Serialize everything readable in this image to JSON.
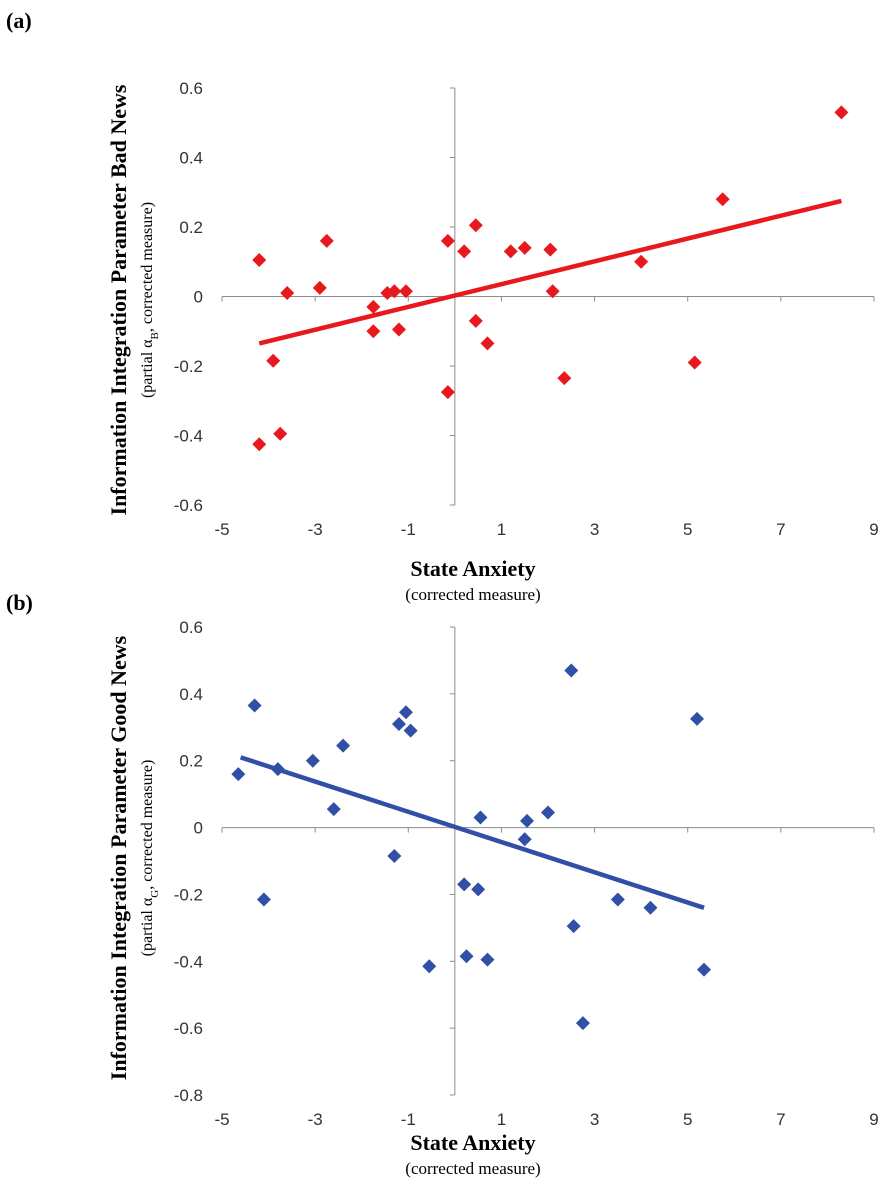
{
  "chart_data": [
    {
      "type": "scatter",
      "panel_label": "(a)",
      "xlabel": "State Anxiety",
      "xlabel_sub": "(corrected measure)",
      "ylabel": "Information Integration Parameter Bad News",
      "ylabel_sub_prefix": "(partial α",
      "ylabel_sub_subscript": "B",
      "ylabel_sub_suffix": ", corrected measure)",
      "xlim": [
        -5,
        9
      ],
      "ylim": [
        -0.6,
        0.6
      ],
      "xticks": [
        -5,
        -3,
        -1,
        1,
        3,
        5,
        7,
        9
      ],
      "yticks": [
        -0.6,
        -0.4,
        -0.2,
        0,
        0.2,
        0.4,
        0.6
      ],
      "ytick_labels": [
        "-0.6",
        "-0.4",
        "-0.2",
        "0",
        "0.2",
        "0.4",
        "0.6"
      ],
      "color": "#e8191e",
      "marker": "diamond",
      "grid": false,
      "points": [
        [
          -4.2,
          0.105
        ],
        [
          -4.2,
          -0.425
        ],
        [
          -3.9,
          -0.185
        ],
        [
          -3.75,
          -0.395
        ],
        [
          -3.6,
          0.01
        ],
        [
          -2.9,
          0.025
        ],
        [
          -2.75,
          0.16
        ],
        [
          -1.75,
          -0.03
        ],
        [
          -1.75,
          -0.1
        ],
        [
          -1.45,
          0.01
        ],
        [
          -1.3,
          0.015
        ],
        [
          -1.2,
          -0.095
        ],
        [
          -1.05,
          0.015
        ],
        [
          -0.15,
          0.16
        ],
        [
          -0.15,
          -0.275
        ],
        [
          0.2,
          0.13
        ],
        [
          0.45,
          0.205
        ],
        [
          0.45,
          -0.07
        ],
        [
          0.7,
          -0.135
        ],
        [
          1.2,
          0.13
        ],
        [
          1.5,
          0.14
        ],
        [
          2.05,
          0.135
        ],
        [
          2.1,
          0.015
        ],
        [
          2.35,
          -0.235
        ],
        [
          4.0,
          0.1
        ],
        [
          5.15,
          -0.19
        ],
        [
          5.75,
          0.28
        ],
        [
          8.3,
          0.53
        ]
      ],
      "trendline": {
        "x": [
          -4.2,
          8.3
        ],
        "y": [
          -0.135,
          0.275
        ]
      }
    },
    {
      "type": "scatter",
      "panel_label": "(b)",
      "xlabel": "State Anxiety",
      "xlabel_sub": "(corrected measure)",
      "ylabel": "Information Integration Parameter Good News",
      "ylabel_sub_prefix": "(partial α",
      "ylabel_sub_subscript": "G",
      "ylabel_sub_suffix": ", corrected measure)",
      "xlim": [
        -5,
        9
      ],
      "ylim": [
        -0.8,
        0.6
      ],
      "xticks": [
        -5,
        -3,
        -1,
        1,
        3,
        5,
        7,
        9
      ],
      "yticks": [
        -0.8,
        -0.6,
        -0.4,
        -0.2,
        0,
        0.2,
        0.4,
        0.6
      ],
      "ytick_labels": [
        "-0.8",
        "-0.6",
        "-0.4",
        "-0.2",
        "0",
        "0.2",
        "0.4",
        "0.6"
      ],
      "color": "#3050a8",
      "marker": "diamond",
      "grid": false,
      "points": [
        [
          -4.65,
          0.16
        ],
        [
          -4.3,
          0.365
        ],
        [
          -4.1,
          -0.215
        ],
        [
          -3.8,
          0.175
        ],
        [
          -3.05,
          0.2
        ],
        [
          -2.6,
          0.055
        ],
        [
          -2.4,
          0.245
        ],
        [
          -1.3,
          -0.085
        ],
        [
          -1.2,
          0.31
        ],
        [
          -1.05,
          0.345
        ],
        [
          -0.95,
          0.29
        ],
        [
          -0.55,
          -0.415
        ],
        [
          0.2,
          -0.17
        ],
        [
          0.25,
          -0.385
        ],
        [
          0.5,
          -0.185
        ],
        [
          0.55,
          0.03
        ],
        [
          0.7,
          -0.395
        ],
        [
          1.5,
          -0.035
        ],
        [
          1.55,
          0.02
        ],
        [
          2.0,
          0.045
        ],
        [
          2.5,
          0.47
        ],
        [
          2.55,
          -0.295
        ],
        [
          2.75,
          -0.585
        ],
        [
          3.5,
          -0.215
        ],
        [
          4.2,
          -0.24
        ],
        [
          5.2,
          0.325
        ],
        [
          5.35,
          -0.425
        ]
      ],
      "trendline": {
        "x": [
          -4.6,
          5.35
        ],
        "y": [
          0.21,
          -0.24
        ]
      }
    }
  ]
}
